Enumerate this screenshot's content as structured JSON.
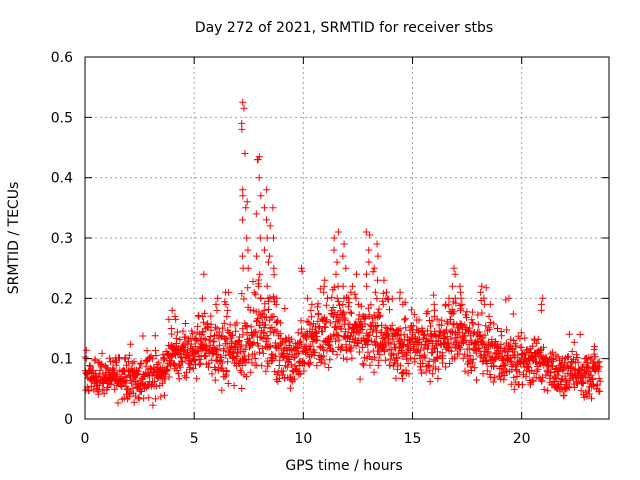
{
  "chart_data": {
    "type": "scatter",
    "title": "Day 272 of 2021, SRMTID for receiver stbs",
    "xlabel": "GPS time / hours",
    "ylabel": "SRMTID / TECUs",
    "xlim": [
      0,
      24
    ],
    "ylim": [
      0,
      0.6
    ],
    "xticks": [
      0,
      5,
      10,
      15,
      20
    ],
    "xtick_labels": [
      "0",
      "5",
      "10",
      "15",
      "20"
    ],
    "yticks": [
      0,
      0.1,
      0.2,
      0.3,
      0.4,
      0.5,
      0.6
    ],
    "ytick_labels": [
      "0",
      "0.1",
      "0.2",
      "0.3",
      "0.4",
      "0.5",
      "0.6"
    ],
    "grid": true,
    "marker": "+",
    "marker_color": "#ff0000",
    "x_data_range": [
      0,
      23.6
    ],
    "point_count": 1900,
    "baseline_profile": {
      "x": [
        0,
        1,
        2,
        3,
        3.5,
        4,
        4.5,
        5,
        5.5,
        6,
        6.5,
        7,
        7.5,
        8,
        8.5,
        9,
        9.5,
        10,
        10.5,
        11,
        11.5,
        12,
        12.5,
        13,
        13.5,
        14,
        14.5,
        15,
        15.5,
        16,
        16.5,
        17,
        17.5,
        18,
        18.5,
        19,
        19.5,
        20,
        20.5,
        21,
        21.5,
        22,
        22.5,
        23,
        23.6
      ],
      "y": [
        0.075,
        0.07,
        0.065,
        0.07,
        0.075,
        0.1,
        0.105,
        0.11,
        0.12,
        0.105,
        0.1,
        0.11,
        0.13,
        0.15,
        0.14,
        0.1,
        0.09,
        0.12,
        0.14,
        0.14,
        0.15,
        0.15,
        0.14,
        0.13,
        0.14,
        0.13,
        0.12,
        0.12,
        0.12,
        0.12,
        0.13,
        0.14,
        0.13,
        0.12,
        0.11,
        0.1,
        0.1,
        0.09,
        0.09,
        0.085,
        0.08,
        0.075,
        0.075,
        0.07,
        0.075
      ]
    },
    "spread_profile": {
      "x": [
        0,
        4,
        7,
        8.5,
        9.5,
        11,
        14,
        17,
        20,
        23.6
      ],
      "y": [
        0.025,
        0.03,
        0.04,
        0.055,
        0.03,
        0.045,
        0.04,
        0.04,
        0.03,
        0.025
      ]
    },
    "peak_bursts": [
      {
        "x": 4.05,
        "values": [
          0.18,
          0.17,
          0.165,
          0.15
        ]
      },
      {
        "x": 5.45,
        "values": [
          0.24,
          0.2,
          0.175,
          0.17
        ]
      },
      {
        "x": 6.1,
        "values": [
          0.2,
          0.19,
          0.18
        ]
      },
      {
        "x": 6.55,
        "values": [
          0.21,
          0.19,
          0.18,
          0.17
        ]
      },
      {
        "x": 7.25,
        "values": [
          0.525,
          0.515,
          0.49,
          0.48,
          0.44,
          0.38,
          0.37,
          0.33,
          0.27,
          0.25
        ]
      },
      {
        "x": 7.4,
        "values": [
          0.36,
          0.35,
          0.3,
          0.28,
          0.25
        ]
      },
      {
        "x": 7.95,
        "values": [
          0.435,
          0.43,
          0.43,
          0.4,
          0.37,
          0.34,
          0.3,
          0.27,
          0.24,
          0.22
        ]
      },
      {
        "x": 8.3,
        "values": [
          0.38,
          0.35,
          0.33,
          0.3,
          0.28,
          0.26,
          0.22,
          0.2,
          0.18
        ]
      },
      {
        "x": 8.55,
        "values": [
          0.35,
          0.32,
          0.3,
          0.27,
          0.25,
          0.2
        ]
      },
      {
        "x": 8.75,
        "values": [
          0.2,
          0.19,
          0.17,
          0.16
        ]
      },
      {
        "x": 10.0,
        "values": [
          0.25,
          0.245
        ]
      },
      {
        "x": 10.3,
        "values": [
          0.2,
          0.19,
          0.18
        ]
      },
      {
        "x": 11.0,
        "values": [
          0.23,
          0.22,
          0.21,
          0.2
        ]
      },
      {
        "x": 11.5,
        "values": [
          0.31,
          0.3,
          0.28,
          0.26,
          0.24,
          0.22,
          0.2
        ]
      },
      {
        "x": 11.85,
        "values": [
          0.29,
          0.27,
          0.25,
          0.22,
          0.2
        ]
      },
      {
        "x": 12.15,
        "values": [
          0.22,
          0.21,
          0.2
        ]
      },
      {
        "x": 12.5,
        "values": [
          0.24,
          0.2,
          0.19
        ]
      },
      {
        "x": 12.95,
        "values": [
          0.31,
          0.305,
          0.28,
          0.26,
          0.24,
          0.22
        ]
      },
      {
        "x": 13.35,
        "values": [
          0.29,
          0.27,
          0.25,
          0.23,
          0.21
        ]
      },
      {
        "x": 13.7,
        "values": [
          0.23,
          0.21,
          0.2,
          0.19
        ]
      },
      {
        "x": 14.5,
        "values": [
          0.21,
          0.2,
          0.19
        ]
      },
      {
        "x": 16.0,
        "values": [
          0.19,
          0.18,
          0.17
        ]
      },
      {
        "x": 16.6,
        "values": [
          0.2,
          0.19
        ]
      },
      {
        "x": 16.85,
        "values": [
          0.25,
          0.24,
          0.22,
          0.2
        ]
      },
      {
        "x": 17.2,
        "values": [
          0.22,
          0.21,
          0.2,
          0.19,
          0.18
        ]
      },
      {
        "x": 18.2,
        "values": [
          0.22,
          0.21,
          0.2,
          0.19
        ]
      },
      {
        "x": 18.55,
        "values": [
          0.19,
          0.17,
          0.16
        ]
      },
      {
        "x": 19.0,
        "values": [
          0.15,
          0.145
        ]
      },
      {
        "x": 20.95,
        "values": [
          0.2,
          0.19,
          0.18
        ]
      },
      {
        "x": 22.6,
        "values": [
          0.14
        ]
      },
      {
        "x": 23.3,
        "values": [
          0.12,
          0.115
        ]
      }
    ]
  }
}
